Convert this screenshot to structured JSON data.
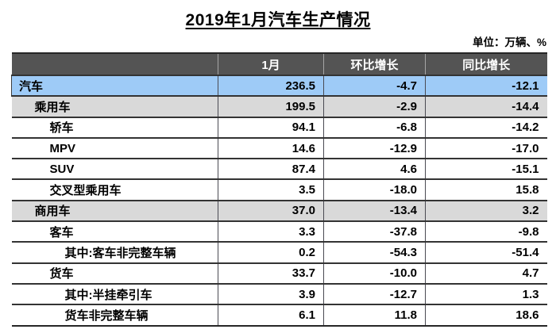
{
  "title": "2019年1月汽车生产情况",
  "unit_note": "单位：万辆、%",
  "colors": {
    "header_bg": "#545454",
    "header_text": "#ffffff",
    "highlight_blue": "#9ECBF7",
    "highlight_gray": "#D9D9D9",
    "border_dark": "#333333",
    "outer_border": "#262626"
  },
  "chart_data": {
    "type": "table",
    "title": "2019年1月汽车生产情况",
    "unit_note": "单位：万辆、%",
    "columns": [
      "",
      "1月",
      "环比增长",
      "同比增长"
    ],
    "rows": [
      {
        "label": "汽车",
        "indent": 0,
        "highlight": "blue",
        "values": [
          "236.5",
          "-4.7",
          "-12.1"
        ]
      },
      {
        "label": "乘用车",
        "indent": 1,
        "highlight": "gray",
        "values": [
          "199.5",
          "-2.9",
          "-14.4"
        ]
      },
      {
        "label": "轿车",
        "indent": 2,
        "highlight": "white",
        "values": [
          "94.1",
          "-6.8",
          "-14.2"
        ]
      },
      {
        "label": "MPV",
        "indent": 2,
        "highlight": "white",
        "values": [
          "14.6",
          "-12.9",
          "-17.0"
        ]
      },
      {
        "label": "SUV",
        "indent": 2,
        "highlight": "white",
        "values": [
          "87.4",
          "4.6",
          "-15.1"
        ]
      },
      {
        "label": "交叉型乘用车",
        "indent": 2,
        "highlight": "white",
        "values": [
          "3.5",
          "-18.0",
          "15.8"
        ]
      },
      {
        "label": "商用车",
        "indent": 1,
        "highlight": "gray",
        "values": [
          "37.0",
          "-13.4",
          "3.2"
        ]
      },
      {
        "label": "客车",
        "indent": 2,
        "highlight": "white",
        "values": [
          "3.3",
          "-37.8",
          "-9.8"
        ]
      },
      {
        "label": "其中:客车非完整车辆",
        "indent": 3,
        "highlight": "white",
        "values": [
          "0.2",
          "-54.3",
          "-51.4"
        ]
      },
      {
        "label": "货车",
        "indent": 2,
        "highlight": "white",
        "values": [
          "33.7",
          "-10.0",
          "4.7"
        ]
      },
      {
        "label": "其中:半挂牵引车",
        "indent": 3,
        "highlight": "white",
        "values": [
          "3.9",
          "-12.7",
          "1.3"
        ]
      },
      {
        "label": "货车非完整车辆",
        "indent": 3,
        "highlight": "white",
        "values": [
          "6.1",
          "11.8",
          "18.6"
        ]
      }
    ]
  }
}
